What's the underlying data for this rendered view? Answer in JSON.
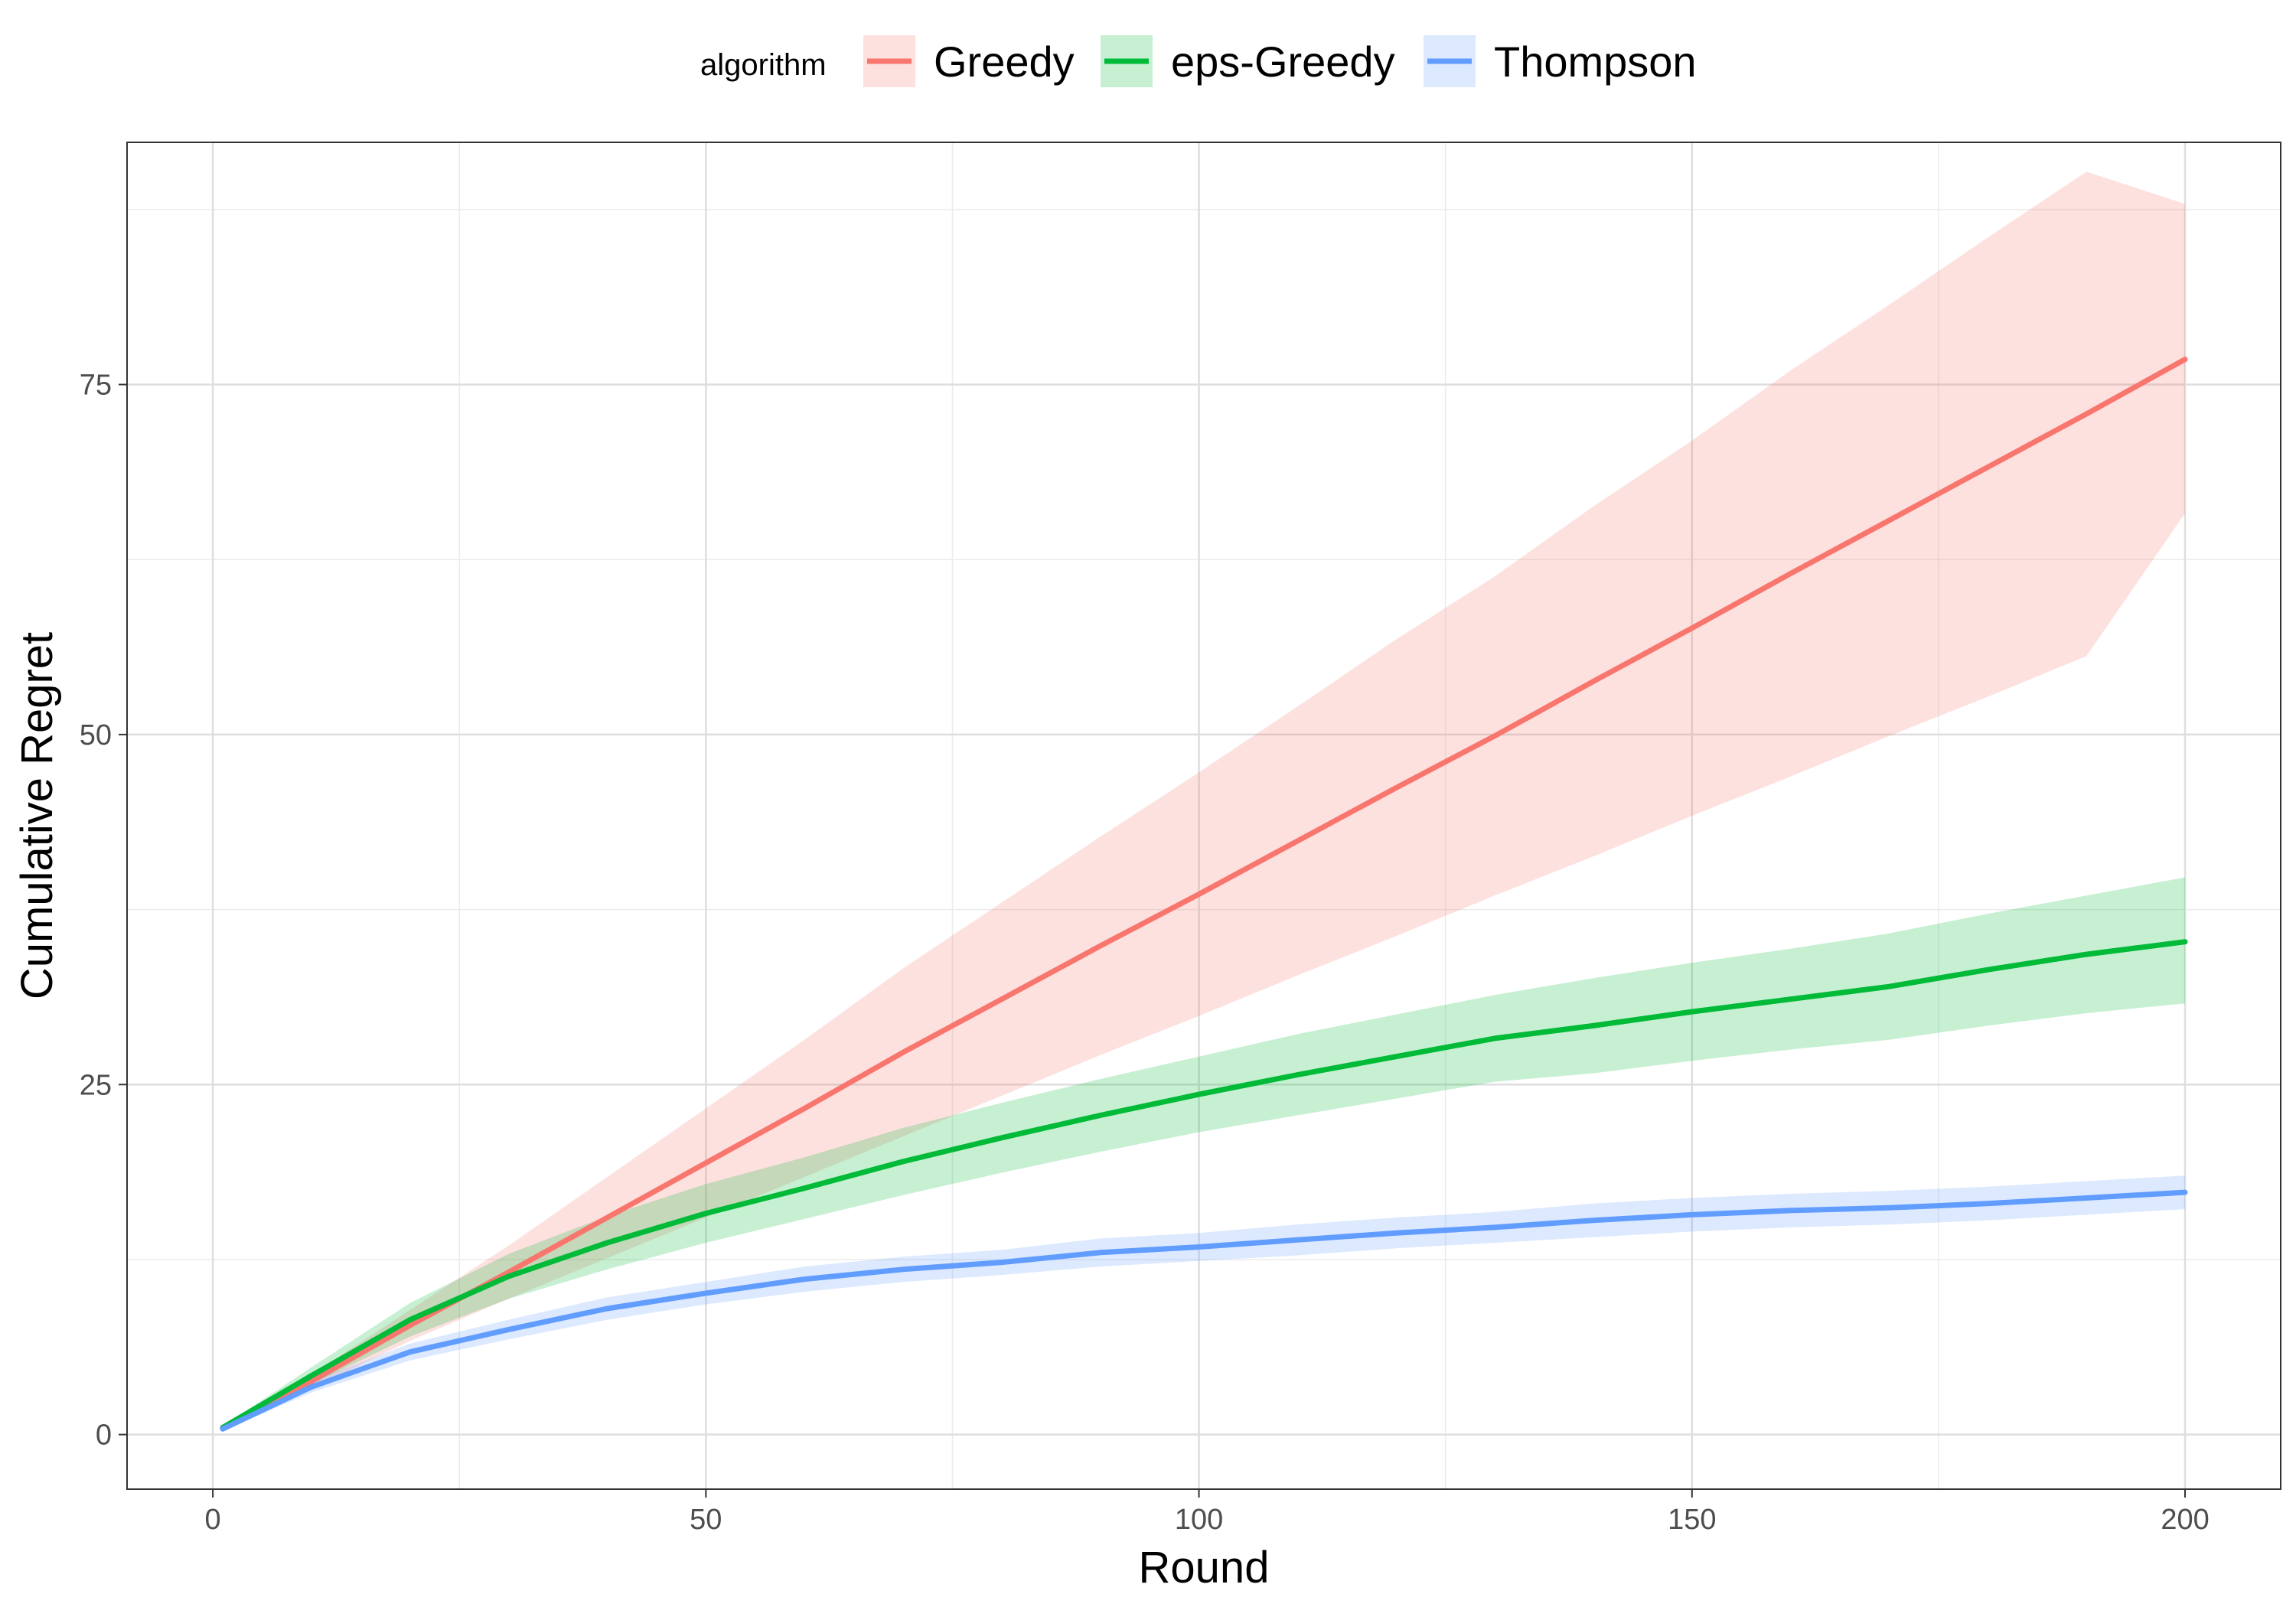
{
  "chart_data": {
    "type": "line",
    "title": "",
    "xlabel": "Round",
    "ylabel": "Cumulative Regret",
    "xlim": [
      -8.7,
      209.7
    ],
    "ylim": [
      -3.9,
      92.3
    ],
    "x_ticks": [
      0,
      50,
      100,
      150,
      200
    ],
    "x_tick_labels": [
      "0",
      "50",
      "100",
      "150",
      "200"
    ],
    "y_ticks": [
      0,
      25,
      50,
      75
    ],
    "y_tick_labels": [
      "0",
      "25",
      "50",
      "75"
    ],
    "grid": true,
    "legend": {
      "title": "algorithm",
      "position": "top",
      "entries": [
        "Greedy",
        "eps-Greedy",
        "Thompson"
      ]
    },
    "series": [
      {
        "name": "Greedy",
        "color": "#F8766D",
        "x": [
          1,
          10,
          20,
          30,
          40,
          50,
          60,
          70,
          80,
          90,
          100,
          110,
          120,
          130,
          140,
          150,
          160,
          170,
          180,
          190,
          200
        ],
        "y": [
          0.5,
          3.8,
          7.8,
          11.6,
          15.5,
          19.4,
          23.3,
          27.3,
          31.1,
          34.9,
          38.6,
          42.4,
          46.2,
          49.9,
          53.8,
          57.6,
          61.5,
          65.3,
          69.1,
          72.9,
          76.8
        ],
        "lower": [
          0.4,
          3.3,
          6.7,
          9.7,
          12.6,
          15.5,
          18.4,
          21.3,
          24.2,
          27.1,
          29.9,
          32.8,
          35.6,
          38.5,
          41.3,
          44.2,
          47.0,
          49.9,
          52.7,
          55.6,
          65.8
        ],
        "upper": [
          0.6,
          4.3,
          8.9,
          13.5,
          18.4,
          23.3,
          28.2,
          33.3,
          38.0,
          42.7,
          47.3,
          52.0,
          56.8,
          61.3,
          66.3,
          71.0,
          76.0,
          80.7,
          85.5,
          90.2,
          87.9
        ]
      },
      {
        "name": "eps-Greedy",
        "color": "#00BA38",
        "x": [
          1,
          10,
          20,
          30,
          40,
          50,
          60,
          70,
          80,
          90,
          100,
          110,
          120,
          130,
          140,
          150,
          160,
          170,
          180,
          190,
          200
        ],
        "y": [
          0.5,
          4.2,
          8.2,
          11.3,
          13.7,
          15.8,
          17.6,
          19.5,
          21.2,
          22.8,
          24.3,
          25.7,
          27.0,
          28.3,
          29.2,
          30.2,
          31.1,
          32.0,
          33.2,
          34.3,
          35.2
        ],
        "lower": [
          0.4,
          3.6,
          7.0,
          9.7,
          11.8,
          13.7,
          15.4,
          17.1,
          18.7,
          20.2,
          21.6,
          22.8,
          24.0,
          25.2,
          25.8,
          26.7,
          27.5,
          28.2,
          29.2,
          30.1,
          30.8
        ],
        "upper": [
          0.6,
          4.8,
          9.4,
          12.9,
          15.6,
          17.9,
          19.8,
          21.9,
          23.7,
          25.4,
          27.0,
          28.6,
          30.0,
          31.4,
          32.6,
          33.7,
          34.7,
          35.8,
          37.2,
          38.5,
          39.8
        ]
      },
      {
        "name": "Thompson",
        "color": "#619CFF",
        "x": [
          1,
          10,
          20,
          30,
          40,
          50,
          60,
          70,
          80,
          90,
          100,
          110,
          120,
          130,
          140,
          150,
          160,
          170,
          180,
          190,
          200
        ],
        "y": [
          0.4,
          3.4,
          5.9,
          7.5,
          9.0,
          10.1,
          11.1,
          11.8,
          12.3,
          13.0,
          13.4,
          13.9,
          14.4,
          14.8,
          15.3,
          15.7,
          16.0,
          16.2,
          16.5,
          16.9,
          17.3
        ],
        "lower": [
          0.3,
          3.0,
          5.3,
          6.8,
          8.2,
          9.3,
          10.2,
          10.9,
          11.4,
          12.0,
          12.4,
          12.8,
          13.3,
          13.7,
          14.1,
          14.5,
          14.8,
          15.0,
          15.3,
          15.7,
          16.1
        ],
        "upper": [
          0.5,
          3.8,
          6.5,
          8.2,
          9.8,
          10.9,
          12.0,
          12.7,
          13.2,
          14.0,
          14.4,
          15.0,
          15.5,
          15.9,
          16.5,
          16.9,
          17.2,
          17.4,
          17.7,
          18.1,
          18.5
        ]
      }
    ]
  }
}
